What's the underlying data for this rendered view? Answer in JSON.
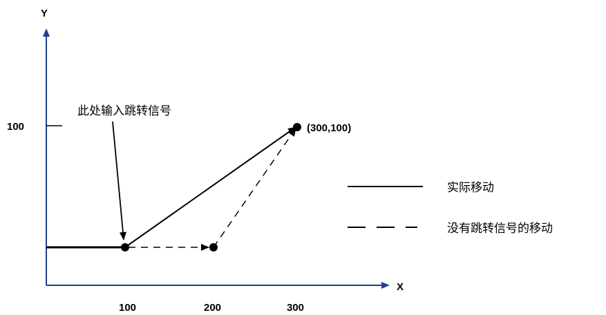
{
  "axes": {
    "x_label": "X",
    "y_label": "Y",
    "x_ticks": [
      "100",
      "200",
      "300"
    ],
    "y_ticks": [
      "100"
    ]
  },
  "annotations": {
    "jump_input": "此处输入跳转信号",
    "end_point": "(300,100)"
  },
  "legend": {
    "actual": "实际移动",
    "no_jump": "没有跳转信号的移动"
  },
  "colors": {
    "line": "#000000",
    "axis": "#1f3f8f"
  }
}
